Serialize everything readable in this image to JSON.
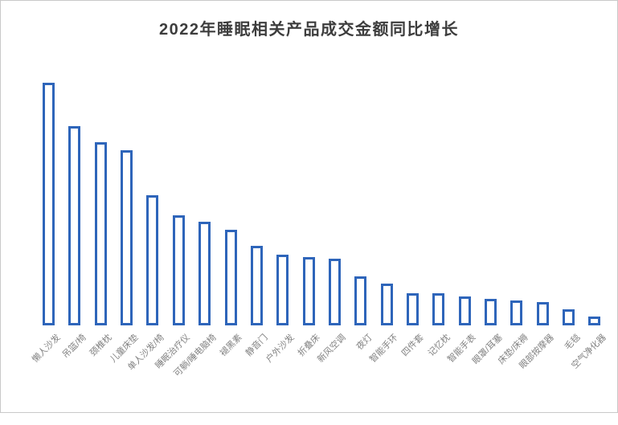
{
  "page": {
    "background": "#ffffff",
    "frame_border_color": "#c9c9c9"
  },
  "chart": {
    "title_color": "#3d3d3d",
    "bar_border_color": "#2e65ba",
    "bar_fill_color": "#ffffff",
    "axis_label_color": "#828282"
  },
  "chart_data": {
    "type": "bar",
    "title": "2022年睡眠相关产品成交金额同比增长",
    "categories": [
      "懒人沙发",
      "吊篮/椅",
      "颈椎枕",
      "儿童床垫",
      "单人沙发/椅",
      "睡眠治疗仪",
      "可躺/睡电脑椅",
      "褪黑素",
      "静音门",
      "户外沙发",
      "折叠床",
      "新风空调",
      "夜灯",
      "智能手环",
      "四件套",
      "记忆枕",
      "智能手表",
      "眼罩/耳塞",
      "床垫/床褥",
      "眼部按摩器",
      "毛毯",
      "空气净化器"
    ],
    "values": [
      302,
      248,
      228,
      218,
      162,
      137,
      129,
      119,
      99,
      88,
      85,
      83,
      61,
      52,
      40,
      40,
      36,
      33,
      31,
      29,
      20,
      11
    ],
    "value_unit": "relative bar height in px; chart displays no y-axis, gridlines, or data labels",
    "xlabel": "",
    "ylabel": "",
    "ylim": [
      0,
      330
    ],
    "grid": false,
    "legend": false,
    "sort_order": "descending",
    "bar_style": "hollow outlined bars (white fill, blue border)",
    "x_label_rotation_deg": 45
  }
}
